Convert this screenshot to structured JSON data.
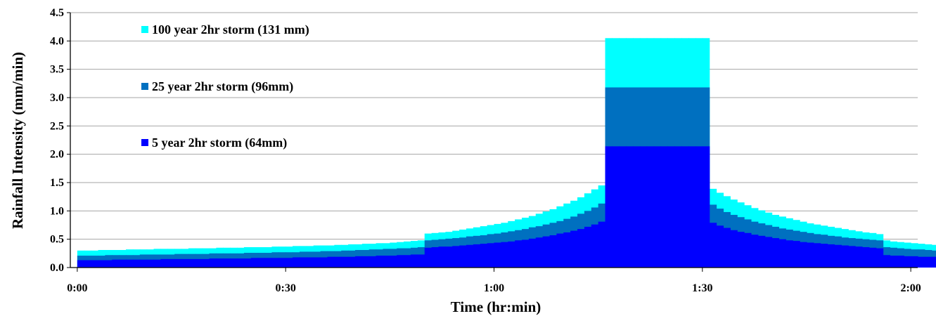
{
  "chart_data": {
    "type": "bar",
    "stacked": false,
    "xlabel": "Time (hr:min)",
    "ylabel": "Rainfall Intensity (mm/min)",
    "ylim": [
      0,
      4.5
    ],
    "yticks": [
      "0.0",
      "0.5",
      "1.0",
      "1.5",
      "2.0",
      "2.5",
      "3.0",
      "3.5",
      "4.0",
      "4.5"
    ],
    "xticks": [
      "0:00",
      "0:30",
      "1:00",
      "1:30",
      "2:00"
    ],
    "x_range_minutes": [
      -1,
      121
    ],
    "grid": true,
    "legend_position": "top-left",
    "bin_minutes": 1,
    "bins_start_minutes": 0,
    "series": [
      {
        "name": "100 year 2hr storm (131 mm)",
        "color": "#00ffff",
        "values": [
          0.3,
          0.3,
          0.3,
          0.31,
          0.31,
          0.31,
          0.31,
          0.32,
          0.32,
          0.32,
          0.32,
          0.33,
          0.33,
          0.33,
          0.33,
          0.33,
          0.34,
          0.34,
          0.34,
          0.34,
          0.35,
          0.35,
          0.35,
          0.35,
          0.36,
          0.36,
          0.36,
          0.36,
          0.37,
          0.37,
          0.37,
          0.38,
          0.38,
          0.38,
          0.39,
          0.39,
          0.39,
          0.4,
          0.4,
          0.41,
          0.41,
          0.42,
          0.42,
          0.43,
          0.43,
          0.44,
          0.45,
          0.46,
          0.47,
          0.48,
          0.6,
          0.61,
          0.62,
          0.63,
          0.65,
          0.67,
          0.69,
          0.71,
          0.73,
          0.75,
          0.77,
          0.79,
          0.82,
          0.85,
          0.88,
          0.91,
          0.95,
          0.99,
          1.03,
          1.08,
          1.13,
          1.18,
          1.24,
          1.31,
          1.38,
          1.45,
          4.05,
          4.05,
          4.05,
          4.05,
          4.05,
          4.05,
          4.05,
          4.05,
          4.05,
          4.05,
          4.05,
          4.05,
          4.05,
          4.05,
          4.05,
          1.39,
          1.32,
          1.26,
          1.2,
          1.15,
          1.1,
          1.05,
          1.01,
          0.97,
          0.93,
          0.9,
          0.87,
          0.84,
          0.81,
          0.78,
          0.76,
          0.74,
          0.72,
          0.7,
          0.68,
          0.66,
          0.64,
          0.62,
          0.61,
          0.59,
          0.48,
          0.46,
          0.45,
          0.44,
          0.43,
          0.42,
          0.41,
          0.4,
          0.39,
          0.38
        ]
      },
      {
        "name": "25 year 2hr storm (96mm)",
        "color": "#0070c0",
        "values": [
          0.21,
          0.21,
          0.21,
          0.21,
          0.22,
          0.22,
          0.22,
          0.22,
          0.22,
          0.23,
          0.23,
          0.23,
          0.23,
          0.23,
          0.24,
          0.24,
          0.24,
          0.24,
          0.24,
          0.25,
          0.25,
          0.25,
          0.25,
          0.25,
          0.26,
          0.26,
          0.26,
          0.26,
          0.27,
          0.27,
          0.27,
          0.27,
          0.28,
          0.28,
          0.28,
          0.29,
          0.29,
          0.29,
          0.3,
          0.3,
          0.31,
          0.31,
          0.32,
          0.32,
          0.33,
          0.33,
          0.34,
          0.34,
          0.35,
          0.36,
          0.48,
          0.49,
          0.5,
          0.51,
          0.52,
          0.53,
          0.55,
          0.56,
          0.57,
          0.59,
          0.6,
          0.62,
          0.64,
          0.66,
          0.68,
          0.71,
          0.73,
          0.76,
          0.79,
          0.82,
          0.86,
          0.9,
          0.95,
          1.0,
          1.06,
          1.13,
          3.18,
          3.18,
          3.18,
          3.18,
          3.18,
          3.18,
          3.18,
          3.18,
          3.18,
          3.18,
          3.18,
          3.18,
          3.18,
          3.18,
          3.18,
          1.11,
          1.04,
          0.98,
          0.93,
          0.89,
          0.85,
          0.81,
          0.78,
          0.75,
          0.72,
          0.69,
          0.67,
          0.65,
          0.63,
          0.61,
          0.59,
          0.58,
          0.56,
          0.55,
          0.53,
          0.52,
          0.51,
          0.5,
          0.49,
          0.48,
          0.36,
          0.35,
          0.34,
          0.33,
          0.32,
          0.32,
          0.31,
          0.3,
          0.3,
          0.29
        ]
      },
      {
        "name": "5 year 2hr storm (64mm)",
        "color": "#0000ff",
        "values": [
          0.13,
          0.13,
          0.13,
          0.13,
          0.13,
          0.14,
          0.14,
          0.14,
          0.14,
          0.14,
          0.14,
          0.14,
          0.15,
          0.15,
          0.15,
          0.15,
          0.15,
          0.15,
          0.15,
          0.16,
          0.16,
          0.16,
          0.16,
          0.16,
          0.16,
          0.17,
          0.17,
          0.17,
          0.17,
          0.17,
          0.17,
          0.18,
          0.18,
          0.18,
          0.18,
          0.18,
          0.19,
          0.19,
          0.19,
          0.19,
          0.2,
          0.2,
          0.2,
          0.21,
          0.21,
          0.21,
          0.22,
          0.22,
          0.23,
          0.23,
          0.35,
          0.36,
          0.37,
          0.37,
          0.38,
          0.39,
          0.4,
          0.41,
          0.42,
          0.43,
          0.44,
          0.45,
          0.46,
          0.48,
          0.49,
          0.51,
          0.53,
          0.55,
          0.57,
          0.6,
          0.62,
          0.65,
          0.68,
          0.72,
          0.76,
          0.81,
          2.14,
          2.14,
          2.14,
          2.14,
          2.14,
          2.14,
          2.14,
          2.14,
          2.14,
          2.14,
          2.14,
          2.14,
          2.14,
          2.14,
          2.14,
          0.79,
          0.74,
          0.7,
          0.66,
          0.63,
          0.61,
          0.58,
          0.56,
          0.54,
          0.52,
          0.5,
          0.48,
          0.47,
          0.45,
          0.44,
          0.43,
          0.42,
          0.41,
          0.4,
          0.39,
          0.38,
          0.37,
          0.36,
          0.35,
          0.34,
          0.22,
          0.21,
          0.21,
          0.2,
          0.2,
          0.19,
          0.19,
          0.19,
          0.18,
          0.18
        ]
      }
    ]
  }
}
